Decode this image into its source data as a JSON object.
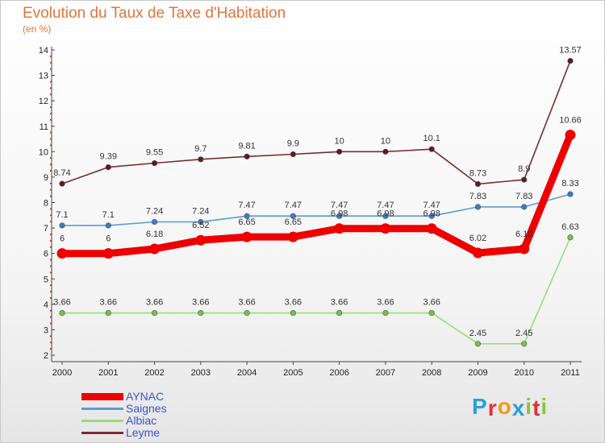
{
  "title": "Evolution du Taux de Taxe d'Habitation",
  "subtitle": "(en %)",
  "colors": {
    "title": "#e0763c",
    "legend_text": "#3a55c8"
  },
  "chart_data": {
    "type": "line",
    "x": [
      "2000",
      "2001",
      "2002",
      "2003",
      "2004",
      "2005",
      "2006",
      "2007",
      "2008",
      "2009",
      "2010",
      "2011"
    ],
    "ylim": [
      2,
      14
    ],
    "yticks": [
      "2",
      "3",
      "4",
      "5",
      "6",
      "7",
      "8",
      "9",
      "10",
      "11",
      "12",
      "13",
      "14"
    ],
    "grid": false,
    "legend_position": "bottom-left",
    "series": [
      {
        "name": "AYNAC",
        "color": "#ee0000",
        "emphasis": true,
        "values": [
          6,
          6,
          6.18,
          6.52,
          6.65,
          6.65,
          6.98,
          6.98,
          6.98,
          6.02,
          6.18,
          10.66
        ],
        "labels": [
          "6",
          "6",
          "6.18",
          "6.52",
          "6.65",
          "6.65",
          "6.98",
          "6.98",
          "6.98",
          "6.02",
          "6.18",
          "10.66"
        ]
      },
      {
        "name": "Saignes",
        "color": "#5b9bd5",
        "point_color": "#3b7dbf",
        "values": [
          7.1,
          7.1,
          7.24,
          7.24,
          7.47,
          7.47,
          7.47,
          7.47,
          7.47,
          7.83,
          7.83,
          8.33
        ],
        "labels": [
          "7.1",
          "7.1",
          "7.24",
          "7.24",
          "7.47",
          "7.47",
          "7.47",
          "7.47",
          "7.47",
          "7.83",
          "7.83",
          "8.33"
        ]
      },
      {
        "name": "Albiac",
        "color": "#99dd77",
        "point_color": "#77c04a",
        "values": [
          3.66,
          3.66,
          3.66,
          3.66,
          3.66,
          3.66,
          3.66,
          3.66,
          3.66,
          2.45,
          2.45,
          6.63
        ],
        "labels": [
          "3.66",
          "3.66",
          "3.66",
          "3.66",
          "3.66",
          "3.66",
          "3.66",
          "3.66",
          "3.66",
          "2.45",
          "2.45",
          "6.63"
        ]
      },
      {
        "name": "Leyme",
        "color": "#7a2b33",
        "point_color": "#5e1a20",
        "values": [
          8.74,
          9.39,
          9.55,
          9.7,
          9.81,
          9.9,
          10,
          10,
          10.1,
          8.73,
          8.9,
          13.57
        ],
        "labels": [
          "8.74",
          "9.39",
          "9.55",
          "9.7",
          "9.81",
          "9.9",
          "10",
          "10",
          "10.1",
          "8.73",
          "8.9",
          "13.57"
        ]
      }
    ]
  },
  "logo": {
    "letters": [
      "P",
      "r",
      "o",
      "x",
      "i",
      "t",
      "i"
    ],
    "colors": [
      "#2a9fd8",
      "#e2303a",
      "#f39a1e",
      "#2a9fd8",
      "#8cc63e",
      "#e2303a",
      "#8cc63e"
    ]
  }
}
